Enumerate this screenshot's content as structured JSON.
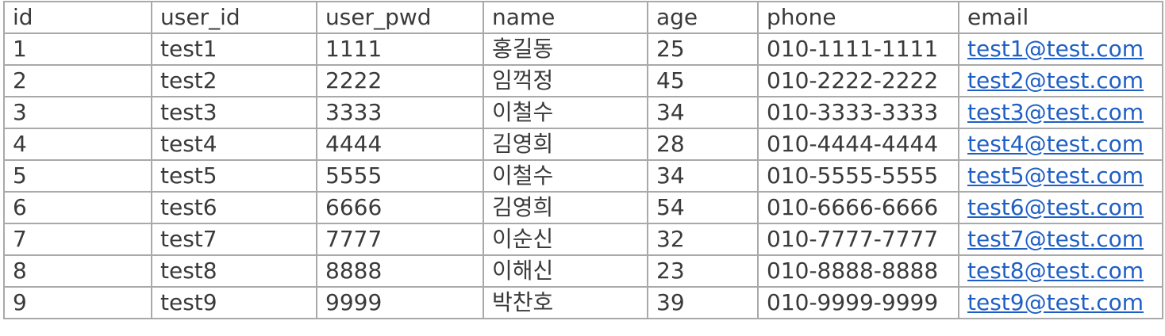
{
  "table": {
    "columns": [
      "id",
      "user_id",
      "user_pwd",
      "name",
      "age",
      "phone",
      "email"
    ],
    "rows": [
      [
        "1",
        "test1",
        "1111",
        "홍길동",
        "25",
        "010-1111-1111",
        "test1@test.com"
      ],
      [
        "2",
        "test2",
        "2222",
        "임꺽정",
        "45",
        "010-2222-2222",
        "test2@test.com"
      ],
      [
        "3",
        "test3",
        "3333",
        "이철수",
        "34",
        "010-3333-3333",
        "test3@test.com"
      ],
      [
        "4",
        "test4",
        "4444",
        "김영희",
        "28",
        "010-4444-4444",
        "test4@test.com"
      ],
      [
        "5",
        "test5",
        "5555",
        "이철수",
        "34",
        "010-5555-5555",
        "test5@test.com"
      ],
      [
        "6",
        "test6",
        "6666",
        "김영희",
        "54",
        "010-6666-6666",
        "test6@test.com"
      ],
      [
        "7",
        "test7",
        "7777",
        "이순신",
        "32",
        "010-7777-7777",
        "test7@test.com"
      ],
      [
        "8",
        "test8",
        "8888",
        "이해신",
        "23",
        "010-8888-8888",
        "test8@test.com"
      ],
      [
        "9",
        "test9",
        "9999",
        "박찬호",
        "39",
        "010-9999-9999",
        "test9@test.com"
      ]
    ]
  },
  "colors": {
    "text": "#3a3a3a",
    "border": "#a9a9a9",
    "link": "#1f5fc4"
  }
}
